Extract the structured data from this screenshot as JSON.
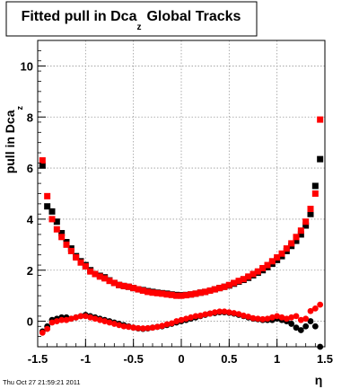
{
  "colors": {
    "background": "#ffffff",
    "frame": "#000000",
    "grid": "#9a9a9a",
    "series_black": "#000000",
    "series_red": "#ff0000"
  },
  "footer": {
    "timestamp": "Thu Oct 27 21:59:21 2011"
  },
  "chart_data": {
    "type": "scatter",
    "title": "Fitted pull in Dca",
    "title_subscript": "z",
    "title_suffix": "Global Tracks",
    "xlabel": "η",
    "ylabel": "pull in Dca",
    "ylabel_subscript": "z",
    "xlim": [
      -1.5,
      1.5
    ],
    "ylim": [
      -1,
      11
    ],
    "x_ticks": [
      -1.5,
      -1,
      -0.5,
      0,
      0.5,
      1,
      1.5
    ],
    "x_tick_labels": [
      "-1.5",
      "-1",
      "-0.5",
      "0",
      "0.5",
      "1",
      "1.5"
    ],
    "y_ticks": [
      0,
      2,
      4,
      6,
      8,
      10
    ],
    "y_tick_labels": [
      "0",
      "2",
      "4",
      "6",
      "8",
      "10"
    ],
    "grid": true,
    "series": [
      {
        "color": "#000000",
        "marker": "square",
        "group": "width",
        "points": [
          [
            -1.45,
            6.1
          ],
          [
            -1.4,
            4.5
          ],
          [
            -1.35,
            4.3
          ],
          [
            -1.3,
            3.9
          ],
          [
            -1.25,
            3.45
          ],
          [
            -1.2,
            3.1
          ],
          [
            -1.15,
            2.85
          ],
          [
            -1.1,
            2.55
          ],
          [
            -1.05,
            2.35
          ],
          [
            -1.0,
            2.2
          ],
          [
            -0.95,
            2.0
          ],
          [
            -0.9,
            1.85
          ],
          [
            -0.85,
            1.78
          ],
          [
            -0.8,
            1.72
          ],
          [
            -0.75,
            1.6
          ],
          [
            -0.7,
            1.5
          ],
          [
            -0.65,
            1.42
          ],
          [
            -0.6,
            1.38
          ],
          [
            -0.55,
            1.35
          ],
          [
            -0.5,
            1.3
          ],
          [
            -0.45,
            1.25
          ],
          [
            -0.4,
            1.22
          ],
          [
            -0.35,
            1.18
          ],
          [
            -0.3,
            1.15
          ],
          [
            -0.25,
            1.12
          ],
          [
            -0.2,
            1.1
          ],
          [
            -0.15,
            1.08
          ],
          [
            -0.1,
            1.05
          ],
          [
            -0.05,
            1.03
          ],
          [
            0.0,
            1.02
          ],
          [
            0.05,
            1.03
          ],
          [
            0.1,
            1.05
          ],
          [
            0.15,
            1.08
          ],
          [
            0.2,
            1.12
          ],
          [
            0.25,
            1.15
          ],
          [
            0.3,
            1.2
          ],
          [
            0.35,
            1.25
          ],
          [
            0.4,
            1.3
          ],
          [
            0.45,
            1.35
          ],
          [
            0.5,
            1.4
          ],
          [
            0.55,
            1.47
          ],
          [
            0.6,
            1.55
          ],
          [
            0.65,
            1.62
          ],
          [
            0.7,
            1.7
          ],
          [
            0.75,
            1.8
          ],
          [
            0.8,
            1.9
          ],
          [
            0.85,
            2.0
          ],
          [
            0.9,
            2.12
          ],
          [
            0.95,
            2.25
          ],
          [
            1.0,
            2.4
          ],
          [
            1.05,
            2.55
          ],
          [
            1.1,
            2.75
          ],
          [
            1.15,
            2.95
          ],
          [
            1.2,
            3.15
          ],
          [
            1.25,
            3.4
          ],
          [
            1.3,
            3.75
          ],
          [
            1.35,
            4.2
          ],
          [
            1.4,
            5.3
          ],
          [
            1.45,
            6.35
          ]
        ]
      },
      {
        "color": "#ff0000",
        "marker": "square",
        "group": "width",
        "points": [
          [
            -1.45,
            6.3
          ],
          [
            -1.4,
            4.9
          ],
          [
            -1.35,
            4.0
          ],
          [
            -1.3,
            3.6
          ],
          [
            -1.25,
            3.3
          ],
          [
            -1.2,
            3.0
          ],
          [
            -1.15,
            2.75
          ],
          [
            -1.1,
            2.5
          ],
          [
            -1.05,
            2.3
          ],
          [
            -1.0,
            2.15
          ],
          [
            -0.95,
            1.95
          ],
          [
            -0.9,
            1.85
          ],
          [
            -0.85,
            1.75
          ],
          [
            -0.8,
            1.68
          ],
          [
            -0.75,
            1.58
          ],
          [
            -0.7,
            1.5
          ],
          [
            -0.65,
            1.42
          ],
          [
            -0.6,
            1.38
          ],
          [
            -0.55,
            1.35
          ],
          [
            -0.5,
            1.3
          ],
          [
            -0.45,
            1.25
          ],
          [
            -0.4,
            1.2
          ],
          [
            -0.35,
            1.15
          ],
          [
            -0.3,
            1.12
          ],
          [
            -0.25,
            1.1
          ],
          [
            -0.2,
            1.08
          ],
          [
            -0.15,
            1.05
          ],
          [
            -0.1,
            1.03
          ],
          [
            -0.05,
            1.0
          ],
          [
            0.0,
            1.0
          ],
          [
            0.05,
            1.02
          ],
          [
            0.1,
            1.05
          ],
          [
            0.15,
            1.08
          ],
          [
            0.2,
            1.12
          ],
          [
            0.25,
            1.15
          ],
          [
            0.3,
            1.2
          ],
          [
            0.35,
            1.25
          ],
          [
            0.4,
            1.3
          ],
          [
            0.45,
            1.35
          ],
          [
            0.5,
            1.42
          ],
          [
            0.55,
            1.5
          ],
          [
            0.6,
            1.58
          ],
          [
            0.65,
            1.65
          ],
          [
            0.7,
            1.75
          ],
          [
            0.75,
            1.85
          ],
          [
            0.8,
            1.95
          ],
          [
            0.85,
            2.08
          ],
          [
            0.9,
            2.2
          ],
          [
            0.95,
            2.35
          ],
          [
            1.0,
            2.5
          ],
          [
            1.05,
            2.65
          ],
          [
            1.1,
            2.85
          ],
          [
            1.15,
            3.05
          ],
          [
            1.2,
            3.3
          ],
          [
            1.25,
            3.55
          ],
          [
            1.3,
            3.9
          ],
          [
            1.35,
            4.4
          ],
          [
            1.4,
            5.0
          ],
          [
            1.45,
            7.9
          ]
        ]
      },
      {
        "color": "#000000",
        "marker": "circle",
        "group": "mean",
        "points": [
          [
            -1.45,
            -0.4
          ],
          [
            -1.4,
            -0.2
          ],
          [
            -1.35,
            0.05
          ],
          [
            -1.3,
            0.1
          ],
          [
            -1.25,
            0.15
          ],
          [
            -1.2,
            0.15
          ],
          [
            -1.15,
            0.1
          ],
          [
            -1.1,
            0.15
          ],
          [
            -1.05,
            0.2
          ],
          [
            -1.0,
            0.25
          ],
          [
            -0.95,
            0.2
          ],
          [
            -0.9,
            0.15
          ],
          [
            -0.85,
            0.1
          ],
          [
            -0.8,
            0.05
          ],
          [
            -0.75,
            0.0
          ],
          [
            -0.7,
            -0.05
          ],
          [
            -0.65,
            -0.1
          ],
          [
            -0.6,
            -0.15
          ],
          [
            -0.55,
            -0.2
          ],
          [
            -0.5,
            -0.25
          ],
          [
            -0.45,
            -0.28
          ],
          [
            -0.4,
            -0.3
          ],
          [
            -0.35,
            -0.28
          ],
          [
            -0.3,
            -0.25
          ],
          [
            -0.25,
            -0.22
          ],
          [
            -0.2,
            -0.2
          ],
          [
            -0.15,
            -0.15
          ],
          [
            -0.1,
            -0.1
          ],
          [
            -0.05,
            -0.05
          ],
          [
            0.0,
            0.0
          ],
          [
            0.05,
            0.05
          ],
          [
            0.1,
            0.1
          ],
          [
            0.15,
            0.15
          ],
          [
            0.2,
            0.2
          ],
          [
            0.25,
            0.25
          ],
          [
            0.3,
            0.3
          ],
          [
            0.35,
            0.32
          ],
          [
            0.4,
            0.35
          ],
          [
            0.45,
            0.35
          ],
          [
            0.5,
            0.33
          ],
          [
            0.55,
            0.3
          ],
          [
            0.6,
            0.25
          ],
          [
            0.65,
            0.2
          ],
          [
            0.7,
            0.15
          ],
          [
            0.75,
            0.1
          ],
          [
            0.8,
            0.08
          ],
          [
            0.85,
            0.05
          ],
          [
            0.9,
            0.05
          ],
          [
            0.95,
            0.05
          ],
          [
            1.0,
            0.1
          ],
          [
            1.05,
            0.05
          ],
          [
            1.1,
            0.0
          ],
          [
            1.15,
            -0.1
          ],
          [
            1.2,
            -0.25
          ],
          [
            1.25,
            -0.35
          ],
          [
            1.3,
            -0.2
          ],
          [
            1.35,
            0.0
          ],
          [
            1.4,
            -0.2
          ],
          [
            1.45,
            -1.0
          ]
        ]
      },
      {
        "color": "#ff0000",
        "marker": "circle",
        "group": "mean",
        "points": [
          [
            -1.45,
            -0.45
          ],
          [
            -1.4,
            -0.3
          ],
          [
            -1.35,
            -0.05
          ],
          [
            -1.3,
            0.0
          ],
          [
            -1.25,
            0.05
          ],
          [
            -1.2,
            0.05
          ],
          [
            -1.15,
            0.1
          ],
          [
            -1.1,
            0.15
          ],
          [
            -1.05,
            0.2
          ],
          [
            -1.0,
            0.2
          ],
          [
            -0.95,
            0.15
          ],
          [
            -0.9,
            0.1
          ],
          [
            -0.85,
            0.05
          ],
          [
            -0.8,
            0.0
          ],
          [
            -0.75,
            -0.05
          ],
          [
            -0.7,
            -0.1
          ],
          [
            -0.65,
            -0.15
          ],
          [
            -0.6,
            -0.2
          ],
          [
            -0.55,
            -0.22
          ],
          [
            -0.5,
            -0.25
          ],
          [
            -0.45,
            -0.27
          ],
          [
            -0.4,
            -0.28
          ],
          [
            -0.35,
            -0.27
          ],
          [
            -0.3,
            -0.25
          ],
          [
            -0.25,
            -0.22
          ],
          [
            -0.2,
            -0.18
          ],
          [
            -0.15,
            -0.12
          ],
          [
            -0.1,
            -0.08
          ],
          [
            -0.05,
            0.0
          ],
          [
            0.0,
            0.05
          ],
          [
            0.05,
            0.1
          ],
          [
            0.1,
            0.15
          ],
          [
            0.15,
            0.2
          ],
          [
            0.2,
            0.22
          ],
          [
            0.25,
            0.27
          ],
          [
            0.3,
            0.3
          ],
          [
            0.35,
            0.35
          ],
          [
            0.4,
            0.38
          ],
          [
            0.45,
            0.38
          ],
          [
            0.5,
            0.35
          ],
          [
            0.55,
            0.32
          ],
          [
            0.6,
            0.28
          ],
          [
            0.65,
            0.22
          ],
          [
            0.7,
            0.18
          ],
          [
            0.75,
            0.12
          ],
          [
            0.8,
            0.1
          ],
          [
            0.85,
            0.08
          ],
          [
            0.9,
            0.1
          ],
          [
            0.95,
            0.15
          ],
          [
            1.0,
            0.2
          ],
          [
            1.05,
            0.15
          ],
          [
            1.1,
            0.1
          ],
          [
            1.15,
            0.15
          ],
          [
            1.2,
            0.2
          ],
          [
            1.25,
            0.05
          ],
          [
            1.3,
            0.1
          ],
          [
            1.35,
            0.4
          ],
          [
            1.4,
            0.5
          ],
          [
            1.45,
            0.65
          ]
        ]
      }
    ]
  }
}
